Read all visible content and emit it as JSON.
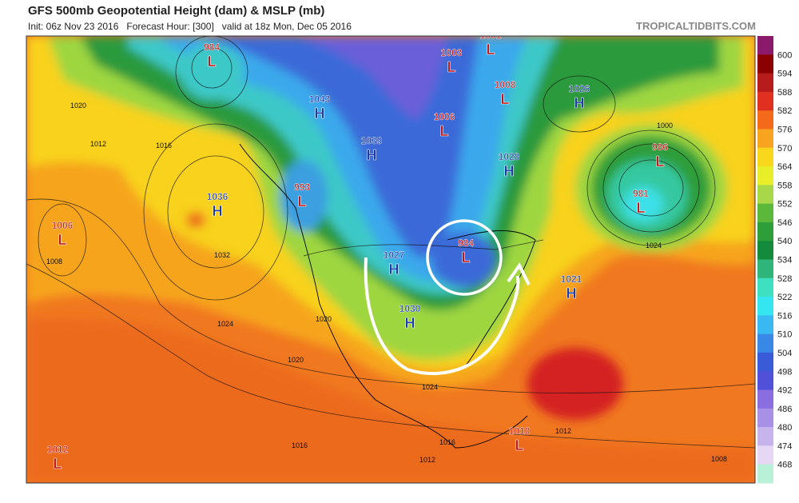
{
  "header": {
    "title": "GFS 500mb Geopotential Height (dam) & MSLP (mb)",
    "subtitle": "Init: 06z Nov 23 2016   Forecast Hour: [300]   valid at 18z Mon, Dec 05 2016",
    "source": "TROPICALTIDBITS.COM"
  },
  "colorbar": {
    "ticks": [
      600,
      594,
      588,
      582,
      576,
      570,
      564,
      558,
      552,
      546,
      540,
      534,
      528,
      522,
      516,
      510,
      504,
      498,
      492,
      486,
      480,
      474,
      468
    ]
  },
  "centers": [
    {
      "type": "L",
      "value": "984"
    },
    {
      "type": "H",
      "value": "1043"
    },
    {
      "type": "L",
      "value": "1003"
    },
    {
      "type": "L",
      "value": "1001"
    },
    {
      "type": "L",
      "value": "1008"
    },
    {
      "type": "H",
      "value": "1026"
    },
    {
      "type": "L",
      "value": "1006"
    },
    {
      "type": "H",
      "value": "1039"
    },
    {
      "type": "H",
      "value": "1028"
    },
    {
      "type": "L",
      "value": "986"
    },
    {
      "type": "L",
      "value": "981"
    },
    {
      "type": "L",
      "value": "993"
    },
    {
      "type": "H",
      "value": "1036"
    },
    {
      "type": "L",
      "value": "1006"
    },
    {
      "type": "H",
      "value": "1027"
    },
    {
      "type": "L",
      "value": "984"
    },
    {
      "type": "H",
      "value": "1021"
    },
    {
      "type": "H",
      "value": "1030"
    },
    {
      "type": "L",
      "value": "1010"
    },
    {
      "type": "L",
      "value": "1012"
    }
  ],
  "isobar_labels": [
    "1020",
    "1016",
    "1012",
    "1024",
    "1032",
    "1008",
    "1020",
    "1024",
    "1020",
    "1016",
    "1012",
    "1016",
    "1012",
    "1008",
    "1024",
    "1000"
  ]
}
